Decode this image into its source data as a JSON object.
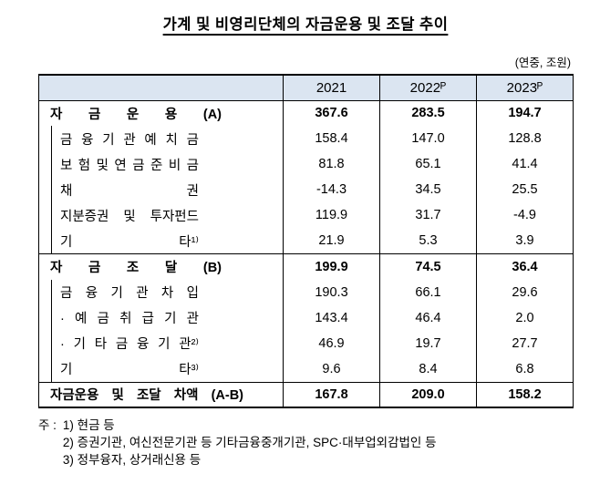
{
  "title": "가계 및 비영리단체의 자금운용 및 조달 추이",
  "unit_note": "(연중, 조원)",
  "colors": {
    "header_bg": "#dbe5f1",
    "border": "#000000"
  },
  "table": {
    "col_headers": [
      "2021",
      "2022ᴾ",
      "2023ᴾ"
    ],
    "rows": [
      {
        "label": "자 금 운 용 (A)",
        "values": [
          "367.6",
          "283.5",
          "194.7"
        ]
      },
      {
        "label": "금 융 기 관 예 치 금",
        "values": [
          "158.4",
          "147.0",
          "128.8"
        ]
      },
      {
        "label": "보 험 및 연 금 준 비 금",
        "values": [
          "81.8",
          "65.1",
          "41.4"
        ]
      },
      {
        "label": "채 권",
        "values": [
          "-14.3",
          "34.5",
          "25.5"
        ]
      },
      {
        "label": "지분증권 및 투자펀드",
        "values": [
          "119.9",
          "31.7",
          "-4.9"
        ]
      },
      {
        "label": "기 타¹⁾",
        "values": [
          "21.9",
          "5.3",
          "3.9"
        ]
      },
      {
        "label": "자 금 조 달 (B)",
        "values": [
          "199.9",
          "74.5",
          "36.4"
        ]
      },
      {
        "label": "금 융 기 관 차 입",
        "values": [
          "190.3",
          "66.1",
          "29.6"
        ]
      },
      {
        "label": "· 예 금 취 급 기 관",
        "values": [
          "143.4",
          "46.4",
          "2.0"
        ]
      },
      {
        "label": "· 기 타 금 융 기 관²⁾",
        "values": [
          "46.9",
          "19.7",
          "27.7"
        ]
      },
      {
        "label": "기 타³⁾",
        "values": [
          "9.6",
          "8.4",
          "6.8"
        ]
      },
      {
        "label": "자금운용 및 조달 차액 (A-B)",
        "values": [
          "167.8",
          "209.0",
          "158.2"
        ]
      }
    ]
  },
  "footnotes": {
    "prefix": "주 :",
    "items": [
      "1) 현금 등",
      "2) 증권기관, 여신전문기관 등 기타금융중개기관, SPC·대부업외감법인 등",
      "3) 정부융자, 상거래신용 등"
    ]
  }
}
